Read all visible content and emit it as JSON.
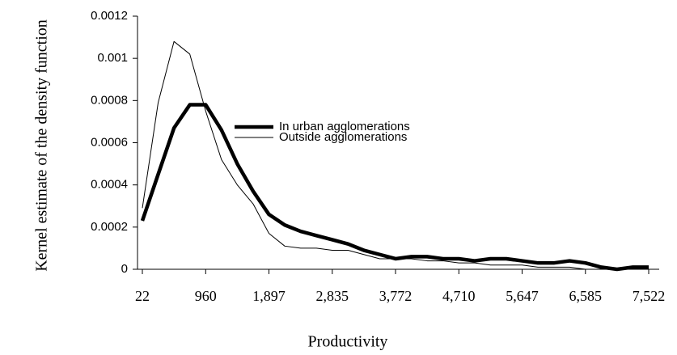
{
  "chart_data": {
    "type": "line",
    "x_label": "Productivity",
    "y_label": "Kernel estimate of the density function",
    "x": [
      22,
      256,
      491,
      725,
      960,
      1194,
      1428,
      1663,
      1897,
      2131,
      2366,
      2600,
      2835,
      3069,
      3303,
      3538,
      3772,
      4006,
      4241,
      4475,
      4710,
      4944,
      5178,
      5413,
      5647,
      5881,
      6116,
      6350,
      6585,
      6819,
      7053,
      7288,
      7522
    ],
    "series": [
      {
        "name": "In urban agglomerations",
        "color": "#000000",
        "width": 4.5,
        "values": [
          0.00023,
          0.00045,
          0.00067,
          0.00078,
          0.00078,
          0.00066,
          0.0005,
          0.00037,
          0.00026,
          0.00021,
          0.00018,
          0.00016,
          0.00014,
          0.00012,
          9e-05,
          7e-05,
          5e-05,
          6e-05,
          6e-05,
          5e-05,
          5e-05,
          4e-05,
          5e-05,
          5e-05,
          4e-05,
          3e-05,
          3e-05,
          4e-05,
          3e-05,
          1e-05,
          0,
          1e-05,
          1e-05
        ]
      },
      {
        "name": "Outside agglomerations",
        "color": "#000000",
        "width": 1,
        "values": [
          0.00029,
          0.00079,
          0.00108,
          0.00102,
          0.00075,
          0.00052,
          0.0004,
          0.00031,
          0.00017,
          0.00011,
          0.0001,
          0.0001,
          9e-05,
          9e-05,
          7e-05,
          5e-05,
          5e-05,
          5e-05,
          4e-05,
          4e-05,
          3e-05,
          3e-05,
          2e-05,
          2e-05,
          2e-05,
          1e-05,
          1e-05,
          1e-05,
          0,
          0,
          0,
          0,
          0
        ]
      }
    ],
    "xlim": [
      22,
      7522
    ],
    "xticks": [
      22,
      960,
      {
        "value": 1897,
        "label": "1,897"
      },
      {
        "value": 2835,
        "label": "2,835"
      },
      {
        "value": 3772,
        "label": "3,772"
      },
      {
        "value": 4710,
        "label": "4,710"
      },
      {
        "value": 5647,
        "label": "5,647"
      },
      {
        "value": 6585,
        "label": "6,585"
      },
      {
        "value": 7522,
        "label": "7,522"
      }
    ],
    "ylim": [
      0,
      0.0012
    ],
    "yticks": [
      0,
      0.0002,
      0.0004,
      0.0006,
      0.0008,
      0.001,
      0.0012
    ],
    "grid": false
  }
}
